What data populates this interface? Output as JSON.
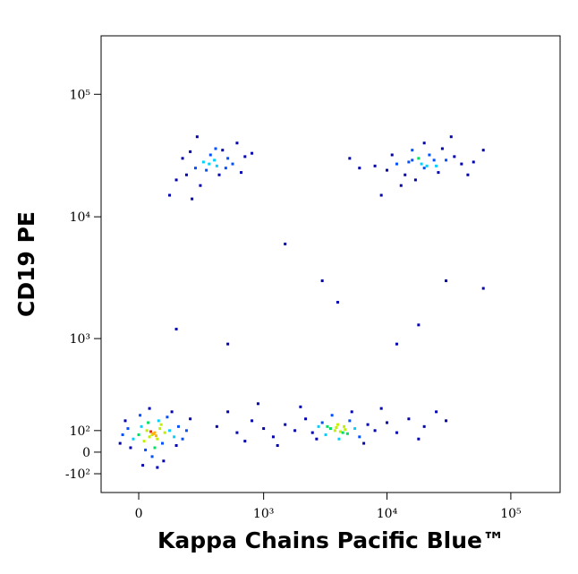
{
  "chart_data": {
    "type": "scatter",
    "x_label": "Kappa Chains Pacific Blue™",
    "y_label": "CD19 PE",
    "xscale": "biexponential",
    "yscale": "biexponential",
    "xlim": [
      -150,
      250000
    ],
    "ylim": [
      -200,
      300000
    ],
    "xticks": [
      0,
      {
        "value": 1000,
        "label": "10³"
      },
      {
        "value": 10000,
        "label": "10⁴"
      },
      {
        "value": 100000,
        "label": "10⁵"
      }
    ],
    "yticks": [
      {
        "value": -100,
        "label": "-10²"
      },
      0,
      {
        "value": 100,
        "label": "10²"
      },
      {
        "value": 1000,
        "label": "10³"
      },
      {
        "value": 10000,
        "label": "10⁴"
      },
      {
        "value": 100000,
        "label": "10⁵"
      }
    ],
    "colormap": [
      "#0000b0",
      "#0050ff",
      "#00d0ff",
      "#00e060",
      "#c0f000",
      "#ffb000",
      "#ff2000"
    ],
    "x": [
      50,
      40,
      60,
      30,
      70,
      55,
      45,
      65,
      20,
      80,
      10,
      90,
      0,
      100,
      -20,
      35,
      60,
      120,
      -40,
      75,
      25,
      140,
      -60,
      110,
      50,
      160,
      5,
      -30,
      180,
      95,
      130,
      -50,
      200,
      40,
      70,
      220,
      -70,
      15,
      150,
      85,
      400,
      600,
      800,
      1000,
      1200,
      1500,
      1800,
      2200,
      2500,
      2800,
      3000,
      3200,
      3500,
      3800,
      4000,
      4200,
      4500,
      4800,
      5000,
      5500,
      6000,
      3600,
      4100,
      3300,
      4600,
      2700,
      5200,
      7000,
      8000,
      10000,
      12000,
      15000,
      20000,
      25000,
      30000,
      500,
      700,
      900,
      1300,
      2000,
      6500,
      9000,
      18000,
      3900,
      4400,
      300,
      250,
      350,
      400,
      200,
      500,
      450,
      150,
      600,
      280,
      380,
      320,
      220,
      550,
      700,
      120,
      420,
      260,
      800,
      340,
      480,
      180,
      650,
      230,
      390,
      15000,
      18000,
      20000,
      12000,
      22000,
      25000,
      10000,
      30000,
      16000,
      14000,
      8000,
      6000,
      35000,
      40000,
      20000,
      17000,
      26000,
      28000,
      11000,
      50000,
      5000,
      19000,
      24000,
      13000,
      45000,
      60000,
      9000,
      33000,
      21000,
      16000,
      1500,
      3000,
      4000,
      18000,
      30000,
      60000,
      150,
      500,
      12000
    ],
    "y": [
      80,
      70,
      90,
      100,
      60,
      85,
      95,
      75,
      50,
      110,
      120,
      40,
      80,
      90,
      60,
      140,
      20,
      100,
      110,
      150,
      10,
      70,
      80,
      170,
      -20,
      120,
      180,
      20,
      60,
      -40,
      200,
      150,
      100,
      220,
      -70,
      160,
      40,
      -60,
      30,
      130,
      120,
      90,
      150,
      110,
      70,
      130,
      100,
      160,
      90,
      120,
      140,
      80,
      110,
      100,
      130,
      95,
      120,
      85,
      150,
      110,
      70,
      180,
      60,
      120,
      105,
      60,
      200,
      130,
      100,
      140,
      90,
      160,
      120,
      200,
      150,
      200,
      50,
      250,
      30,
      230,
      40,
      220,
      60,
      115,
      90,
      28000,
      25000,
      32000,
      26000,
      22000,
      30000,
      35000,
      20000,
      40000,
      18000,
      29000,
      24000,
      34000,
      27000,
      31000,
      15000,
      22000,
      45000,
      33000,
      27000,
      25000,
      30000,
      23000,
      14000,
      36000,
      28000,
      30000,
      25000,
      27000,
      32000,
      26000,
      24000,
      29000,
      35000,
      22000,
      26000,
      25000,
      31000,
      27000,
      40000,
      20000,
      23000,
      36000,
      32000,
      28000,
      30000,
      27000,
      29000,
      18000,
      22000,
      35000,
      15000,
      45000,
      26000,
      29000,
      6000,
      3000,
      2000,
      1300,
      3000,
      2600,
      1200,
      900,
      900
    ]
  }
}
